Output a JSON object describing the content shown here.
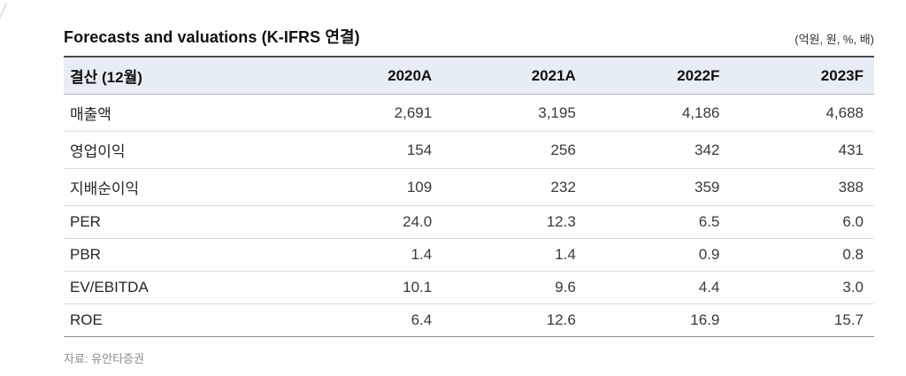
{
  "title": "Forecasts and valuations (K-IFRS 연결)",
  "unit_note": "(억원, 원, %, 배)",
  "source": "자료: 유안타증권",
  "colors": {
    "header_bg": "#e6edf4",
    "top_border": "#4a4a4a",
    "header_divider": "#b3bac1",
    "row_divider": "#dcdcdc",
    "bottom_border": "#8f8f8f"
  },
  "table": {
    "header": [
      "결산 (12월)",
      "2020A",
      "2021A",
      "2022F",
      "2023F"
    ],
    "rows": [
      {
        "label": "매출액",
        "values": [
          "2,691",
          "3,195",
          "4,186",
          "4,688"
        ]
      },
      {
        "label": "영업이익",
        "values": [
          "154",
          "256",
          "342",
          "431"
        ]
      },
      {
        "label": "지배순이익",
        "values": [
          "109",
          "232",
          "359",
          "388"
        ]
      },
      {
        "label": "PER",
        "values": [
          "24.0",
          "12.3",
          "6.5",
          "6.0"
        ]
      },
      {
        "label": "PBR",
        "values": [
          "1.4",
          "1.4",
          "0.9",
          "0.8"
        ]
      },
      {
        "label": "EV/EBITDA",
        "values": [
          "10.1",
          "9.6",
          "4.4",
          "3.0"
        ]
      },
      {
        "label": "ROE",
        "values": [
          "6.4",
          "12.6",
          "16.9",
          "15.7"
        ]
      }
    ]
  }
}
